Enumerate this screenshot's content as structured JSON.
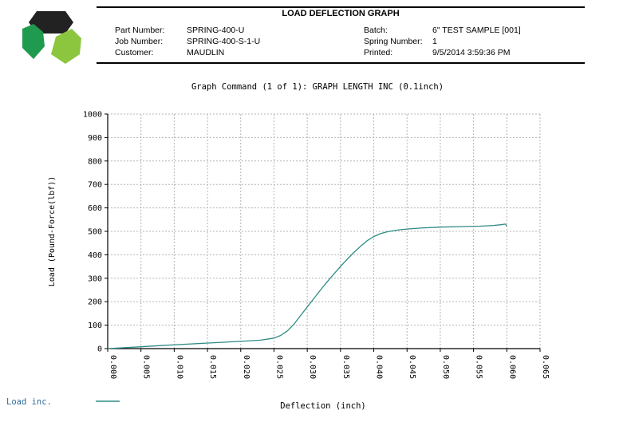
{
  "header": {
    "title": "LOAD DEFLECTION GRAPH",
    "fields_left": [
      {
        "label": "Part Number:",
        "value": "SPRING-400-U"
      },
      {
        "label": "Job Number:",
        "value": "SPRING-400-S-1-U"
      },
      {
        "label": "Customer:",
        "value": "MAUDLIN"
      }
    ],
    "fields_right": [
      {
        "label": "Batch:",
        "value": "6\" TEST SAMPLE [001]"
      },
      {
        "label": "Spring Number:",
        "value": "1"
      },
      {
        "label": "Printed:",
        "value": "9/5/2014 3:59:36 PM"
      }
    ]
  },
  "colors": {
    "series": "#2e8b84",
    "grid": "#b5b5b5",
    "logo_dark": "#1f9a4e",
    "logo_light": "#8cc63f",
    "logo_black": "#222222"
  },
  "chart_data": {
    "type": "line",
    "title": "Graph Command (1 of 1): GRAPH LENGTH INC (0.1inch)",
    "xlabel": "Deflection (inch)",
    "ylabel": "Load (Pound-Force(lbf))",
    "xlim": [
      0,
      0.065
    ],
    "ylim": [
      0,
      1000
    ],
    "x_ticks": [
      "0.000",
      "0.005",
      "0.010",
      "0.015",
      "0.020",
      "0.025",
      "0.030",
      "0.035",
      "0.040",
      "0.045",
      "0.050",
      "0.055",
      "0.060",
      "0.065"
    ],
    "y_ticks": [
      "0",
      "100",
      "200",
      "300",
      "400",
      "500",
      "600",
      "700",
      "800",
      "900",
      "1000"
    ],
    "grid": true,
    "legend": "bottom-left",
    "series": [
      {
        "name": "Load inc.",
        "x": [
          0,
          0.004,
          0.008,
          0.012,
          0.016,
          0.02,
          0.023,
          0.025,
          0.026,
          0.027,
          0.028,
          0.029,
          0.03,
          0.031,
          0.032,
          0.033,
          0.034,
          0.035,
          0.036,
          0.037,
          0.038,
          0.039,
          0.04,
          0.041,
          0.042,
          0.043,
          0.044,
          0.045,
          0.047,
          0.05,
          0.053,
          0.056,
          0.058,
          0.059,
          0.0598,
          0.06
        ],
        "y": [
          0,
          6,
          13,
          19,
          25,
          31,
          36,
          45,
          56,
          75,
          104,
          141,
          178,
          214,
          250,
          285,
          318,
          350,
          381,
          410,
          436,
          460,
          478,
          490,
          498,
          503,
          507,
          510,
          514,
          518,
          520,
          522,
          525,
          528,
          531,
          522
        ]
      }
    ]
  }
}
